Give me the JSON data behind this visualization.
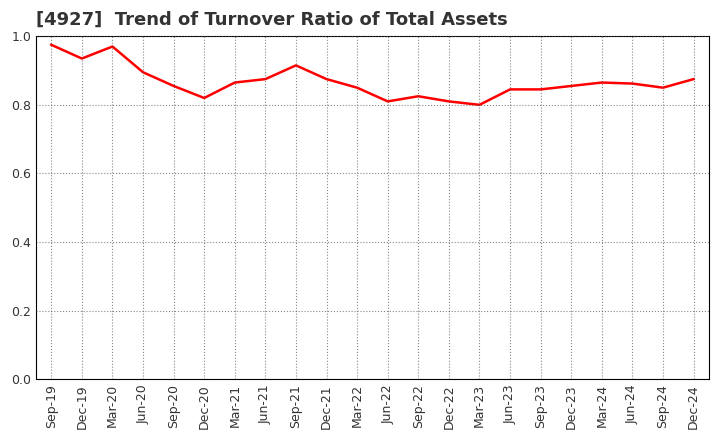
{
  "title": "[4927]  Trend of Turnover Ratio of Total Assets",
  "x_labels": [
    "Sep-19",
    "Dec-19",
    "Mar-20",
    "Jun-20",
    "Sep-20",
    "Dec-20",
    "Mar-21",
    "Jun-21",
    "Sep-21",
    "Dec-21",
    "Mar-22",
    "Jun-22",
    "Sep-22",
    "Dec-22",
    "Mar-23",
    "Jun-23",
    "Sep-23",
    "Dec-23",
    "Mar-24",
    "Jun-24",
    "Sep-24",
    "Dec-24"
  ],
  "y_values": [
    0.975,
    0.935,
    0.97,
    0.895,
    0.855,
    0.82,
    0.865,
    0.875,
    0.915,
    0.875,
    0.85,
    0.81,
    0.825,
    0.81,
    0.8,
    0.845,
    0.845,
    0.855,
    0.865,
    0.862,
    0.85,
    0.875
  ],
  "line_color": "#FF0000",
  "line_width": 1.8,
  "ylim": [
    0.0,
    1.0
  ],
  "yticks": [
    0.0,
    0.2,
    0.4,
    0.6,
    0.8,
    1.0
  ],
  "bg_color": "#FFFFFF",
  "plot_bg_color": "#FFFFFF",
  "grid_color": "#555555",
  "title_fontsize": 13,
  "tick_fontsize": 9,
  "title_color": "#333333"
}
